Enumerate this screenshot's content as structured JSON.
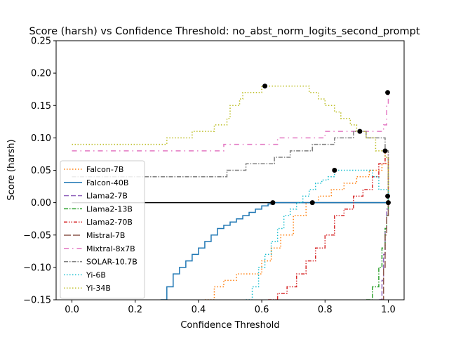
{
  "chart_data": {
    "type": "line",
    "title": "Score (harsh) vs Confidence Threshold: no_abst_norm_logits_second_prompt",
    "xlabel": "Confidence Threshold",
    "ylabel": "Score (harsh)",
    "xlim": [
      -0.05,
      1.05
    ],
    "ylim": [
      -0.15,
      0.25
    ],
    "xticks": [
      0.0,
      0.2,
      0.4,
      0.6,
      0.8,
      1.0
    ],
    "yticks": [
      -0.15,
      -0.1,
      -0.05,
      0.0,
      0.05,
      0.1,
      0.15,
      0.2,
      0.25
    ],
    "legend_position": "lower-left",
    "zero_line": 0.0,
    "series": [
      {
        "name": "Falcon-7B",
        "color": "#ff7f0e",
        "style": "dotted",
        "x": [
          0.42,
          0.45,
          0.48,
          0.52,
          0.56,
          0.6,
          0.63,
          0.66,
          0.7,
          0.74,
          0.78,
          0.82,
          0.86,
          0.9,
          0.94,
          0.98,
          1.0
        ],
        "y": [
          -0.15,
          -0.13,
          -0.12,
          -0.11,
          -0.11,
          -0.09,
          -0.07,
          -0.05,
          -0.02,
          0.0,
          0.01,
          0.02,
          0.03,
          0.04,
          0.05,
          0.06,
          0.0
        ]
      },
      {
        "name": "Falcon-40B",
        "color": "#1f77b4",
        "style": "solid",
        "x": [
          0.28,
          0.3,
          0.32,
          0.34,
          0.36,
          0.38,
          0.4,
          0.42,
          0.44,
          0.46,
          0.48,
          0.5,
          0.52,
          0.54,
          0.56,
          0.58,
          0.6,
          0.62,
          0.64,
          0.66,
          0.7,
          0.74,
          0.78,
          0.82,
          0.86,
          0.9,
          0.94,
          0.98,
          1.0
        ],
        "y": [
          -0.15,
          -0.13,
          -0.11,
          -0.1,
          -0.09,
          -0.08,
          -0.07,
          -0.06,
          -0.05,
          -0.04,
          -0.035,
          -0.03,
          -0.025,
          -0.02,
          -0.015,
          -0.01,
          -0.005,
          -0.002,
          0.0,
          0.0,
          0.0,
          0.0,
          0.0,
          0.0,
          0.0,
          0.0,
          0.0,
          0.0,
          0.0
        ]
      },
      {
        "name": "Llama2-7B",
        "color": "#9467bd",
        "style": "dashed",
        "x": [
          0.97,
          0.98,
          0.985,
          0.99,
          0.995,
          1.0
        ],
        "y": [
          -0.15,
          -0.12,
          -0.08,
          -0.04,
          -0.01,
          0.0
        ]
      },
      {
        "name": "Llama2-13B",
        "color": "#2ca02c",
        "style": "dashdot",
        "x": [
          0.93,
          0.95,
          0.97,
          0.98,
          0.99,
          0.995,
          1.0
        ],
        "y": [
          -0.15,
          -0.13,
          -0.1,
          -0.07,
          -0.04,
          -0.02,
          0.0
        ]
      },
      {
        "name": "Llama2-70B",
        "color": "#d62728",
        "style": "dashdotdot",
        "x": [
          0.62,
          0.65,
          0.68,
          0.71,
          0.74,
          0.77,
          0.8,
          0.83,
          0.86,
          0.89,
          0.92,
          0.95,
          0.97,
          0.99,
          1.0
        ],
        "y": [
          -0.15,
          -0.14,
          -0.13,
          -0.11,
          -0.09,
          -0.07,
          -0.05,
          -0.02,
          -0.01,
          0.01,
          0.02,
          0.04,
          0.06,
          0.08,
          0.0
        ]
      },
      {
        "name": "Mistral-7B",
        "color": "#8c564b",
        "style": "longdash",
        "x": [
          0.975,
          0.985,
          0.99,
          0.995,
          1.0
        ],
        "y": [
          -0.15,
          -0.1,
          -0.05,
          -0.02,
          0.0
        ]
      },
      {
        "name": "Mixtral-8x7B",
        "color": "#e377c2",
        "style": "dashdot-sparse",
        "x": [
          0.0,
          0.35,
          0.47,
          0.48,
          0.64,
          0.65,
          0.79,
          0.8,
          0.97,
          0.985,
          0.995,
          1.0
        ],
        "y": [
          0.08,
          0.08,
          0.08,
          0.09,
          0.09,
          0.1,
          0.1,
          0.11,
          0.11,
          0.12,
          0.15,
          0.17
        ]
      },
      {
        "name": "SOLAR-10.7B",
        "color": "#7f7f7f",
        "style": "dashdot",
        "x": [
          0.0,
          0.48,
          0.49,
          0.54,
          0.55,
          0.63,
          0.64,
          0.68,
          0.69,
          0.75,
          0.76,
          0.82,
          0.83,
          0.88,
          0.89,
          0.92,
          0.93,
          0.99,
          1.0
        ],
        "y": [
          0.04,
          0.04,
          0.05,
          0.05,
          0.06,
          0.06,
          0.07,
          0.07,
          0.08,
          0.08,
          0.09,
          0.09,
          0.1,
          0.1,
          0.11,
          0.11,
          0.1,
          0.08,
          0.0
        ]
      },
      {
        "name": "Yi-6B",
        "color": "#17becf",
        "style": "dotted",
        "x": [
          0.55,
          0.57,
          0.59,
          0.61,
          0.63,
          0.65,
          0.67,
          0.69,
          0.71,
          0.73,
          0.75,
          0.77,
          0.79,
          0.81,
          0.83,
          0.85,
          0.9,
          0.93,
          0.95,
          0.97,
          1.0
        ],
        "y": [
          -0.15,
          -0.13,
          -0.1,
          -0.08,
          -0.06,
          -0.04,
          -0.02,
          -0.01,
          0.0,
          0.01,
          0.02,
          0.03,
          0.035,
          0.04,
          0.05,
          0.05,
          0.05,
          0.05,
          0.04,
          0.02,
          0.0
        ]
      },
      {
        "name": "Yi-34B",
        "color": "#bcbd22",
        "style": "dotted",
        "x": [
          0.0,
          0.29,
          0.3,
          0.37,
          0.38,
          0.44,
          0.45,
          0.49,
          0.5,
          0.53,
          0.54,
          0.59,
          0.6,
          0.61,
          0.62,
          0.74,
          0.75,
          0.78,
          0.8,
          0.83,
          0.85,
          0.88,
          0.9,
          0.93,
          0.96,
          0.99,
          1.0
        ],
        "y": [
          0.09,
          0.09,
          0.1,
          0.1,
          0.11,
          0.11,
          0.12,
          0.13,
          0.15,
          0.16,
          0.17,
          0.17,
          0.18,
          0.18,
          0.18,
          0.18,
          0.17,
          0.16,
          0.15,
          0.14,
          0.13,
          0.12,
          0.11,
          0.1,
          0.08,
          0.07,
          0.0
        ]
      }
    ],
    "markers": [
      {
        "x": 0.61,
        "y": 0.18
      },
      {
        "x": 0.635,
        "y": 0.0
      },
      {
        "x": 0.76,
        "y": 0.0
      },
      {
        "x": 0.83,
        "y": 0.05
      },
      {
        "x": 0.91,
        "y": 0.11
      },
      {
        "x": 0.99,
        "y": 0.08
      },
      {
        "x": 0.998,
        "y": 0.17
      },
      {
        "x": 0.998,
        "y": 0.01
      },
      {
        "x": 1.0,
        "y": 0.0
      }
    ]
  }
}
